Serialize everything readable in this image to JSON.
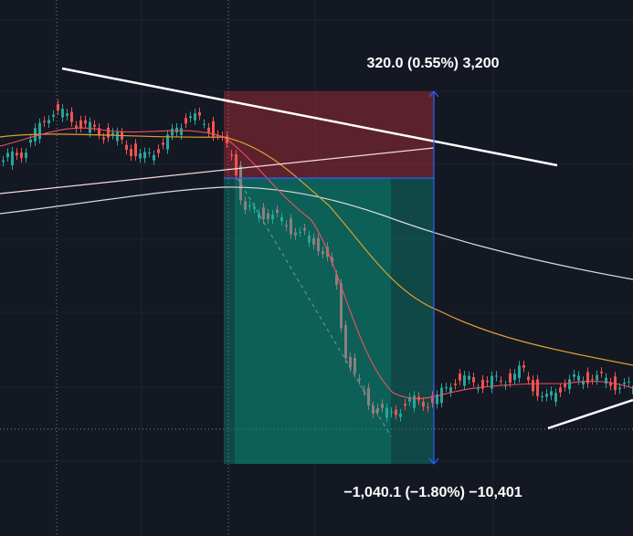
{
  "position_tool": {
    "target_label": "320.0 (0.55%) 3,200",
    "stop_label": "−1,040.1 (−1.80%) −10,401"
  }
}
